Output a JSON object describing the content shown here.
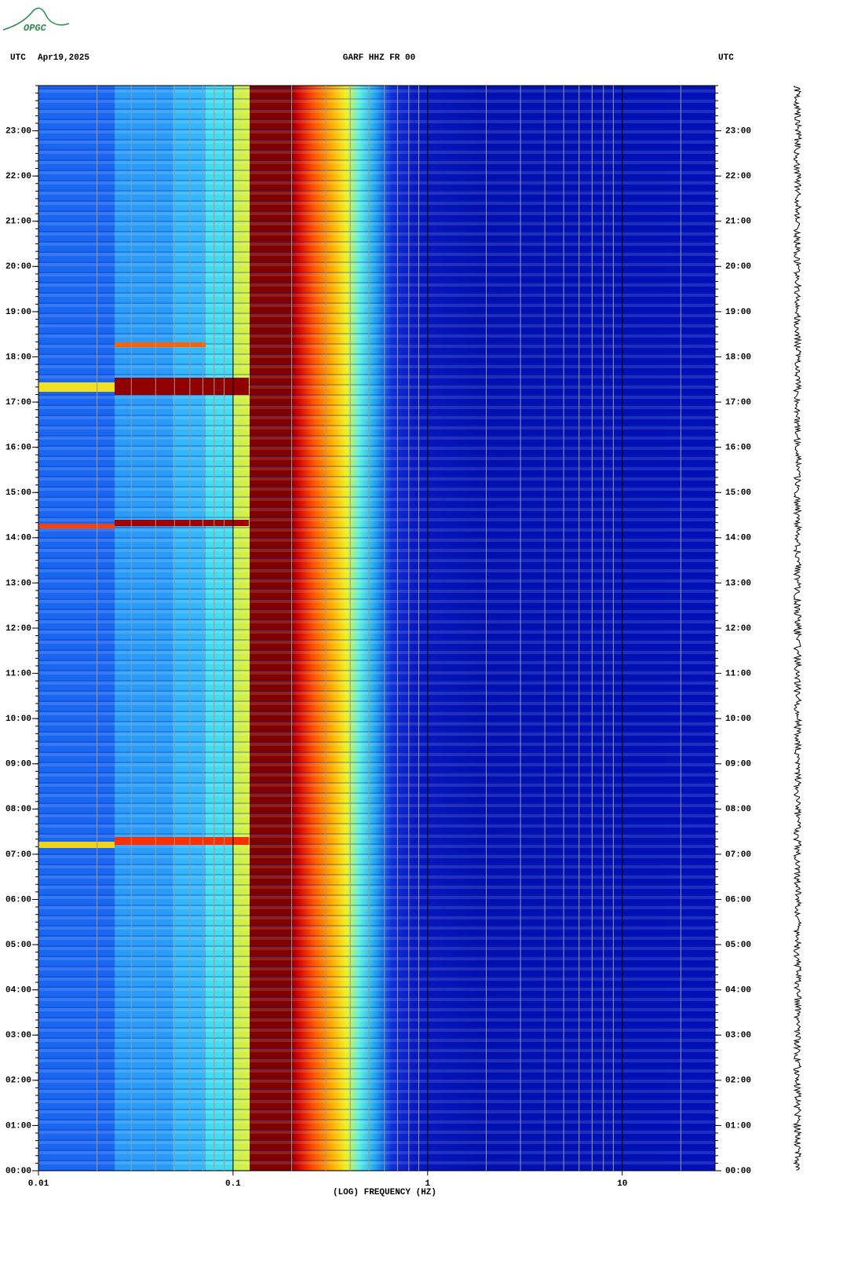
{
  "logo": "OPGC",
  "chart_data": {
    "type": "spectrogram",
    "title": "GARF HHZ FR 00",
    "left_label": "UTC",
    "date": "Apr19,2025",
    "right_label": "UTC",
    "xlabel": "(LOG) FREQUENCY (HZ)",
    "xscale": "log",
    "xlim": [
      0.01,
      30
    ],
    "xticks": [
      0.01,
      0.1,
      1,
      10
    ],
    "ylim": [
      0,
      24
    ],
    "yticks": [
      {
        "value": 0,
        "label": "00:00"
      },
      {
        "value": 1,
        "label": "01:00"
      },
      {
        "value": 2,
        "label": "02:00"
      },
      {
        "value": 3,
        "label": "03:00"
      },
      {
        "value": 4,
        "label": "04:00"
      },
      {
        "value": 5,
        "label": "05:00"
      },
      {
        "value": 6,
        "label": "06:00"
      },
      {
        "value": 7,
        "label": "07:00"
      },
      {
        "value": 8,
        "label": "08:00"
      },
      {
        "value": 9,
        "label": "09:00"
      },
      {
        "value": 10,
        "label": "10:00"
      },
      {
        "value": 11,
        "label": "11:00"
      },
      {
        "value": 12,
        "label": "12:00"
      },
      {
        "value": 13,
        "label": "13:00"
      },
      {
        "value": 14,
        "label": "14:00"
      },
      {
        "value": 15,
        "label": "15:00"
      },
      {
        "value": 16,
        "label": "16:00"
      },
      {
        "value": 17,
        "label": "17:00"
      },
      {
        "value": 18,
        "label": "18:00"
      },
      {
        "value": 19,
        "label": "19:00"
      },
      {
        "value": 20,
        "label": "20:00"
      },
      {
        "value": 21,
        "label": "21:00"
      },
      {
        "value": 22,
        "label": "22:00"
      },
      {
        "value": 23,
        "label": "23:00"
      }
    ]
  }
}
